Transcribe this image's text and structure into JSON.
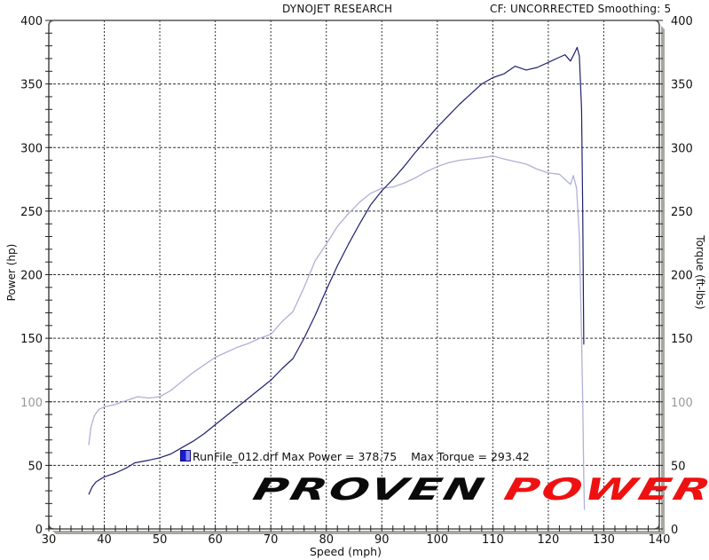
{
  "header": {
    "title": "DYNOJET RESEARCH",
    "correction": "CF: UNCORRECTED  Smoothing: 5"
  },
  "axes": {
    "left_label": "Power (hp)",
    "right_label": "Torque (ft-lbs)",
    "x_label": "Speed (mph)"
  },
  "legend": {
    "text": "RunFile_012.drf Max Power = 378.75    Max Torque = 293.42",
    "run_file": "RunFile_012.drf",
    "max_power": "378.75",
    "max_torque": "293.42"
  },
  "brand": {
    "word1": "PROVEN",
    "word2": "POWER",
    "word1_color": "#0a0a0a",
    "word2_color": "#ee1111"
  },
  "colors": {
    "power_line": "#20206e",
    "torque_line": "#b0b0d8",
    "frame": "#555555",
    "frame_shadow": "#a8a8a0",
    "grid": "#333333"
  },
  "chart_data": {
    "type": "line",
    "title": "DYNOJET RESEARCH",
    "subtitle": "CF: UNCORRECTED  Smoothing: 5",
    "xlabel": "Speed (mph)",
    "ylabel": "Power (hp)",
    "y2label": "Torque (ft-lbs)",
    "xlim": [
      30,
      140
    ],
    "ylim": [
      0,
      400
    ],
    "y2lim": [
      0,
      400
    ],
    "x_ticks": [
      30,
      40,
      50,
      60,
      70,
      80,
      90,
      100,
      110,
      120,
      130,
      140
    ],
    "y_ticks": [
      0,
      50,
      100,
      150,
      200,
      250,
      300,
      350,
      400
    ],
    "y2_ticks": [
      0,
      50,
      100,
      150,
      200,
      250,
      300,
      350,
      400
    ],
    "grid": true,
    "legend_position": "inside-bottom",
    "series": [
      {
        "name": "Power (hp)",
        "axis": "left",
        "x": [
          37.2,
          37.8,
          38.5,
          40,
          42,
          44,
          45.5,
          48,
          50,
          52,
          54,
          56,
          58,
          60,
          62,
          64,
          66,
          68,
          70,
          72,
          74,
          76,
          78,
          80,
          82,
          84,
          86,
          88,
          90,
          92,
          94,
          96,
          98,
          100,
          102,
          104,
          106,
          108,
          110,
          112,
          114,
          116,
          118,
          120,
          122,
          123,
          124,
          124.7,
          125.2,
          125.6,
          126,
          126.2,
          126.4
        ],
        "values": [
          27,
          33,
          37,
          41,
          44,
          48,
          52,
          54,
          56,
          59,
          64,
          69,
          75,
          82,
          89,
          96,
          103,
          110,
          117,
          126,
          134,
          150,
          168,
          188,
          207,
          224,
          240,
          255,
          266,
          275,
          285,
          296,
          306,
          316,
          325,
          334,
          342,
          350,
          355,
          358,
          364,
          361,
          363,
          367,
          371,
          373,
          368,
          374,
          378.75,
          372,
          330,
          250,
          145
        ]
      },
      {
        "name": "Torque (ft-lbs)",
        "axis": "right",
        "x": [
          37.2,
          37.6,
          38.2,
          39,
          40,
          42,
          44,
          46,
          48,
          50,
          52,
          54,
          56,
          58,
          60,
          62,
          64,
          66,
          68,
          70,
          72,
          74,
          76,
          78,
          80,
          82,
          84,
          86,
          88,
          90,
          92,
          94,
          96,
          98,
          100,
          102,
          104,
          106,
          108,
          110,
          112,
          114,
          116,
          118,
          120,
          122,
          123,
          124,
          124.5,
          125.1,
          125.6,
          126,
          126.2,
          126.4,
          126.5
        ],
        "values": [
          66,
          80,
          89,
          94,
          96,
          98,
          101,
          104,
          103,
          104,
          109,
          116,
          123,
          129,
          135,
          139,
          143,
          146,
          150,
          153,
          163,
          171,
          190,
          211,
          224,
          238,
          248,
          257,
          264,
          268,
          269,
          272,
          276,
          281,
          285,
          288,
          290,
          291,
          292,
          293.42,
          291,
          289,
          287,
          283,
          280,
          279,
          275,
          271,
          278,
          268,
          230,
          150,
          100,
          40,
          15
        ]
      }
    ]
  }
}
